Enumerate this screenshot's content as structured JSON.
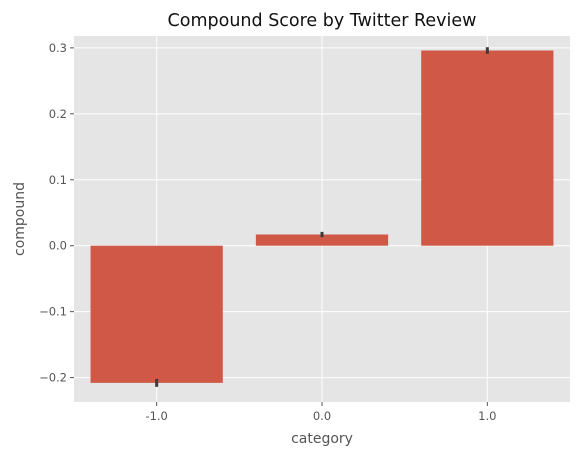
{
  "chart_data": {
    "type": "bar",
    "title": "Compound Score by Twitter Review",
    "xlabel": "category",
    "ylabel": "compound",
    "categories": [
      "-1.0",
      "0.0",
      "1.0"
    ],
    "values": [
      -0.208,
      0.017,
      0.296
    ],
    "error_bars": [
      [
        -0.214,
        -0.202
      ],
      [
        0.013,
        0.021
      ],
      [
        0.291,
        0.301
      ]
    ],
    "ylim": [
      -0.237,
      0.318
    ],
    "yticks": [
      -0.2,
      -0.1,
      0.0,
      0.1,
      0.2,
      0.3
    ],
    "ytick_labels": [
      "−0.2",
      "−0.1",
      "0.0",
      "0.1",
      "0.2",
      "0.3"
    ],
    "grid": true,
    "colors": {
      "bar": "#cf5846",
      "error": "#3b3b3b",
      "panel": "#e5e5e5",
      "grid": "#ffffff"
    }
  }
}
